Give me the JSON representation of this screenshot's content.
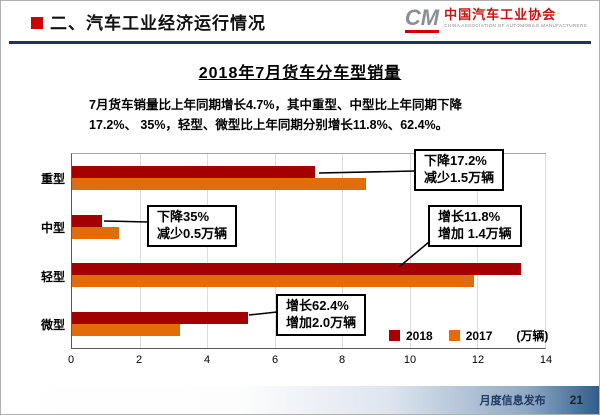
{
  "header": {
    "title": "二、汽车工业经济运行情况",
    "logo": {
      "monogram": "CM",
      "org_name": "中国汽车工业协会",
      "org_name_en": "CHINA ASSOCIATION OF AUTOMOBILE MANUFACTURERS"
    }
  },
  "content": {
    "chart_title": "2018年7月货车分车型销量",
    "body_text": "7月货车销量比上年同期增长4.7%，其中重型、中型比上年同期下降\n17.2%、 35%，轻型、微型比上年同期分别增长11.8%、62.4%。"
  },
  "chart_data": {
    "type": "bar",
    "orientation": "horizontal",
    "title": "2018年7月货车分车型销量",
    "categories": [
      "重型",
      "中型",
      "轻型",
      "微型"
    ],
    "series": [
      {
        "name": "2018",
        "color": "#a40000",
        "values": [
          7.2,
          0.9,
          13.3,
          5.2
        ]
      },
      {
        "name": "2017",
        "color": "#e36c0a",
        "values": [
          8.7,
          1.4,
          11.9,
          3.2
        ]
      }
    ],
    "xlim": [
      0,
      14
    ],
    "xticks": [
      0,
      2,
      4,
      6,
      8,
      10,
      12,
      14
    ],
    "unit_label": "(万辆)",
    "legend_position": "bottom-right",
    "grid": true,
    "annotations": [
      {
        "target": "重型",
        "line1": "下降17.2%",
        "line2": "减少1.5万辆"
      },
      {
        "target": "中型",
        "line1": "下降35%",
        "line2": "减少0.5万辆"
      },
      {
        "target": "轻型",
        "line1": "增长11.8%",
        "line2": "增加 1.4万辆"
      },
      {
        "target": "微型",
        "line1": "增长62.4%",
        "line2": "增加2.0万辆"
      }
    ]
  },
  "footer": {
    "label": "月度信息发布",
    "page": "21"
  }
}
